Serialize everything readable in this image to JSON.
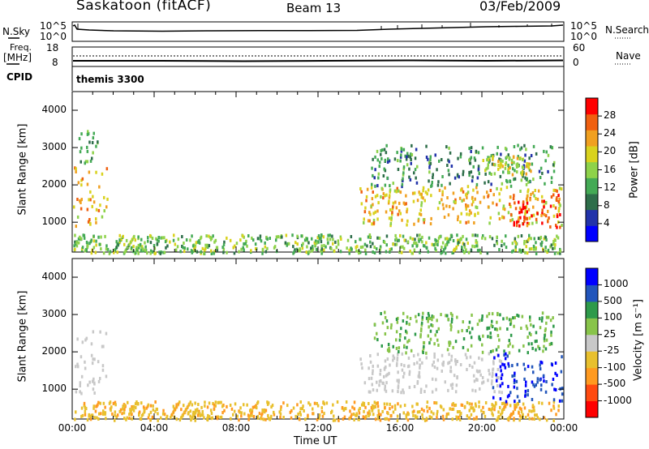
{
  "header": {
    "station": "Saskatoon (fitACF)",
    "beam": "Beam 13",
    "date": "03/Feb/2009"
  },
  "strip_labels": {
    "nsky": "N.Sky",
    "nsearch": "N.Search",
    "freq": "Freq.",
    "freq_unit": "[MHz]",
    "nave": "Nave",
    "cpid": "CPID",
    "cpid_value": "themis 3300",
    "sky_top": "10^5",
    "sky_bottom": "10^0",
    "search_top": "10^5",
    "search_bottom": "10^0",
    "freq_top": "18",
    "freq_bottom": "8",
    "nave_top": "60",
    "nave_bottom": "0"
  },
  "colors": {
    "power_scale": [
      "#0000ff",
      "#2233aa",
      "#2e6e4a",
      "#44aa55",
      "#8ed24a",
      "#d9d21e",
      "#f0a020",
      "#f06010",
      "#ff0000"
    ],
    "velocity_scale": [
      "#ff0000",
      "#ff4a10",
      "#ff9a20",
      "#e8c02e",
      "#c8c8c8",
      "#88c44a",
      "#2e9a4a",
      "#2255bb",
      "#0000ff"
    ],
    "ground_scatter": "#c8c8c8"
  },
  "chart_data": [
    {
      "type": "heatmap",
      "name": "power",
      "ylabel": "Slant Range [km]",
      "yticks": [
        "1000",
        "2000",
        "3000",
        "4000"
      ],
      "ylim": [
        200,
        4500
      ],
      "xlim": [
        0,
        24
      ],
      "colorbar": {
        "label": "Power [dB]",
        "ticks": [
          "4",
          "8",
          "12",
          "16",
          "20",
          "24",
          "28"
        ],
        "range": [
          0,
          30
        ]
      },
      "regions": [
        {
          "t": [
            0.0,
            1.7
          ],
          "r": [
            900,
            2600
          ],
          "level": 0.72
        },
        {
          "t": [
            0.3,
            1.2
          ],
          "r": [
            2600,
            3500
          ],
          "level": 0.35
        },
        {
          "t": [
            0.0,
            23.8
          ],
          "r": [
            200,
            700
          ],
          "level": 0.45
        },
        {
          "t": [
            14.0,
            24.0
          ],
          "r": [
            950,
            2000
          ],
          "level": 0.68
        },
        {
          "t": [
            14.5,
            23.5
          ],
          "r": [
            2000,
            3100
          ],
          "level": 0.3
        },
        {
          "t": [
            21.5,
            24.0
          ],
          "r": [
            900,
            1800
          ],
          "level": 0.95
        },
        {
          "t": [
            20.0,
            22.5
          ],
          "r": [
            2300,
            2800
          ],
          "level": 0.6
        }
      ]
    },
    {
      "type": "heatmap",
      "name": "velocity",
      "ylabel": "Slant Range [km]",
      "yticks": [
        "1000",
        "2000",
        "3000",
        "4000"
      ],
      "ylim": [
        200,
        4500
      ],
      "xlim": [
        0,
        24
      ],
      "xlabel": "Time UT",
      "xticks": [
        "00:00",
        "04:00",
        "08:00",
        "12:00",
        "16:00",
        "20:00",
        "00:00"
      ],
      "colorbar": {
        "label": "Velocity [m s⁻¹]",
        "ticks": [
          "1000",
          "500",
          "100",
          "25",
          "-25",
          "-100",
          "-500",
          "-1000"
        ],
        "range": [
          -1000,
          1000
        ]
      },
      "regions": [
        {
          "t": [
            0.0,
            1.7
          ],
          "r": [
            900,
            2600
          ],
          "level": 0.0,
          "ground": true
        },
        {
          "t": [
            0.0,
            23.8
          ],
          "r": [
            200,
            700
          ],
          "level": -0.3
        },
        {
          "t": [
            14.0,
            21.0
          ],
          "r": [
            950,
            2000
          ],
          "level": 0.0,
          "ground": true
        },
        {
          "t": [
            14.5,
            23.5
          ],
          "r": [
            2000,
            3100
          ],
          "level": 0.35
        },
        {
          "t": [
            20.5,
            24.0
          ],
          "r": [
            700,
            2000
          ],
          "level": 0.85
        }
      ]
    },
    {
      "type": "line",
      "name": "strips",
      "series": [
        {
          "values": [
            0.55,
            0.56,
            0.57,
            0.58
          ]
        },
        {
          "values": [
            0.25,
            0.26,
            0.25,
            0.27
          ]
        }
      ]
    }
  ]
}
